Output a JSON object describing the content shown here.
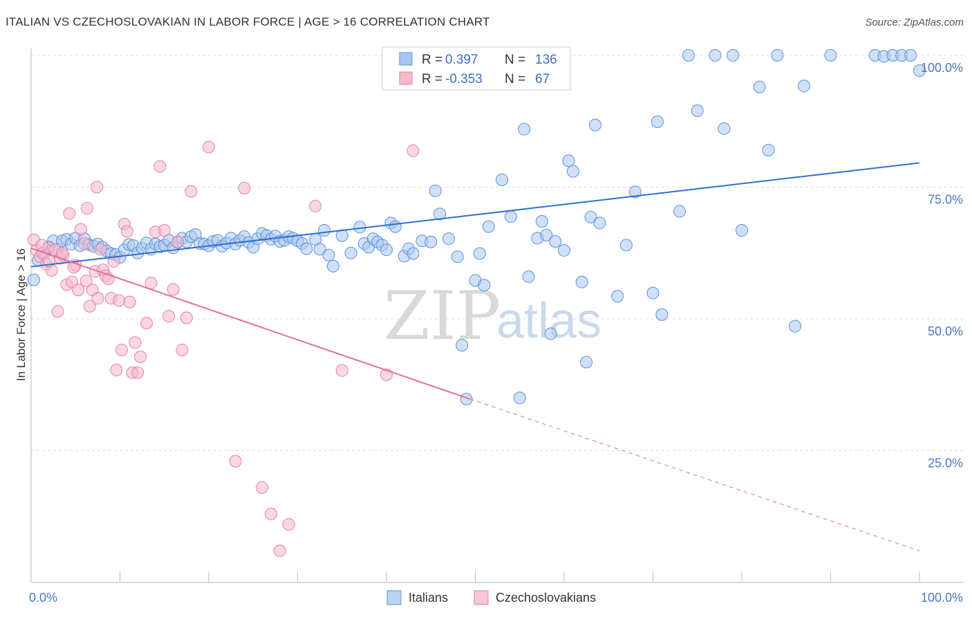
{
  "header": {
    "title": "ITALIAN VS CZECHOSLOVAKIAN IN LABOR FORCE | AGE > 16 CORRELATION CHART",
    "source": "Source: ZipAtlas.com"
  },
  "legend": {
    "rows": [
      {
        "r_label": "R =",
        "r_value": " 0.397",
        "n_label": "N =",
        "n_value": "136",
        "color": "#a9c8f0"
      },
      {
        "r_label": "R =",
        "r_value": "-0.353",
        "n_label": "N =",
        "n_value": " 67",
        "color": "#f5b8cc"
      }
    ]
  },
  "watermark": {
    "zip": "ZIP",
    "atlas": "atlas"
  },
  "chart_data": {
    "type": "scatter",
    "ylabel": "In Labor Force | Age > 16",
    "xlim": [
      0,
      100
    ],
    "ylim": [
      0,
      100
    ],
    "x_tick_labels": [
      "0.0%",
      "100.0%"
    ],
    "y_ticks": [
      {
        "value": 25,
        "label": "25.0%"
      },
      {
        "value": 50,
        "label": "50.0%"
      },
      {
        "value": 75,
        "label": "75.0%"
      },
      {
        "value": 100,
        "label": "100.0%"
      }
    ],
    "grid": true,
    "legend_position": "top-center",
    "series": [
      {
        "name": "Italians",
        "color": "#a9c8f0",
        "stroke": "#5b8fd8",
        "trend": {
          "x0": 0,
          "y0": 59.9,
          "x1": 100,
          "y1": 79.6,
          "color": "#2e6fce"
        },
        "points": [
          [
            0.3,
            57.4
          ],
          [
            0.8,
            61.1
          ],
          [
            1.5,
            62.5
          ],
          [
            2,
            63.7
          ],
          [
            2.5,
            64.8
          ],
          [
            3,
            63.2
          ],
          [
            3.5,
            64.8
          ],
          [
            4,
            65.1
          ],
          [
            4.5,
            64.2
          ],
          [
            5,
            65.3
          ],
          [
            5.5,
            63.9
          ],
          [
            6,
            65.2
          ],
          [
            6.5,
            64.1
          ],
          [
            7,
            63.8
          ],
          [
            7.5,
            64.2
          ],
          [
            8,
            63.6
          ],
          [
            8.5,
            62.9
          ],
          [
            9,
            62.4
          ],
          [
            9.5,
            62.2
          ],
          [
            10,
            61.7
          ],
          [
            10.5,
            63.1
          ],
          [
            11,
            64.1
          ],
          [
            11.5,
            63.9
          ],
          [
            12,
            62.5
          ],
          [
            12.5,
            63.4
          ],
          [
            13,
            64.4
          ],
          [
            13.5,
            63.2
          ],
          [
            14,
            64.2
          ],
          [
            14.5,
            63.7
          ],
          [
            15,
            64.0
          ],
          [
            15.5,
            64.9
          ],
          [
            16,
            63.5
          ],
          [
            16.5,
            64.5
          ],
          [
            17,
            65.3
          ],
          [
            17.5,
            64.6
          ],
          [
            18,
            65.6
          ],
          [
            18.5,
            66.0
          ],
          [
            19,
            64.3
          ],
          [
            19.5,
            64.2
          ],
          [
            20,
            63.9
          ],
          [
            20.5,
            64.7
          ],
          [
            21,
            64.9
          ],
          [
            21.5,
            63.8
          ],
          [
            22,
            64.4
          ],
          [
            22.5,
            65.3
          ],
          [
            23,
            64.2
          ],
          [
            23.5,
            64.9
          ],
          [
            24,
            65.6
          ],
          [
            24.5,
            64.5
          ],
          [
            25,
            63.6
          ],
          [
            25.5,
            65.2
          ],
          [
            26,
            66.2
          ],
          [
            26.5,
            65.8
          ],
          [
            27,
            65.1
          ],
          [
            27.5,
            65.7
          ],
          [
            28,
            64.7
          ],
          [
            28.5,
            64.9
          ],
          [
            29,
            65.6
          ],
          [
            29.5,
            65.3
          ],
          [
            30,
            64.8
          ],
          [
            30.5,
            64.3
          ],
          [
            31,
            63.3
          ],
          [
            32,
            65.1
          ],
          [
            32.5,
            63.2
          ],
          [
            33,
            66.8
          ],
          [
            33.5,
            62.1
          ],
          [
            34,
            60.0
          ],
          [
            35,
            65.8
          ],
          [
            36,
            62.5
          ],
          [
            37,
            67.4
          ],
          [
            37.5,
            64.3
          ],
          [
            38,
            63.6
          ],
          [
            38.5,
            65.2
          ],
          [
            39,
            64.6
          ],
          [
            39.5,
            64.0
          ],
          [
            40,
            63.1
          ],
          [
            40.5,
            68.2
          ],
          [
            41,
            67.5
          ],
          [
            42,
            61.9
          ],
          [
            42.5,
            63.3
          ],
          [
            43,
            62.4
          ],
          [
            44,
            64.8
          ],
          [
            45,
            64.6
          ],
          [
            45.5,
            74.3
          ],
          [
            46,
            69.9
          ],
          [
            47,
            65.2
          ],
          [
            48,
            61.8
          ],
          [
            48.5,
            45.0
          ],
          [
            49,
            34.8
          ],
          [
            50,
            57.3
          ],
          [
            50.5,
            62.4
          ],
          [
            51,
            56.4
          ],
          [
            51.5,
            67.5
          ],
          [
            53,
            76.4
          ],
          [
            54,
            69.4
          ],
          [
            55,
            35.0
          ],
          [
            55.5,
            86.0
          ],
          [
            56,
            58.0
          ],
          [
            57,
            65.3
          ],
          [
            57.5,
            68.5
          ],
          [
            58,
            65.9
          ],
          [
            58.5,
            47.2
          ],
          [
            59,
            64.7
          ],
          [
            60,
            63.0
          ],
          [
            60.5,
            80.0
          ],
          [
            61,
            78.0
          ],
          [
            62,
            57.0
          ],
          [
            62.5,
            41.8
          ],
          [
            63,
            69.3
          ],
          [
            63.5,
            86.8
          ],
          [
            64,
            68.2
          ],
          [
            66,
            54.3
          ],
          [
            67,
            64.0
          ],
          [
            68,
            74.1
          ],
          [
            70,
            54.9
          ],
          [
            70.5,
            87.4
          ],
          [
            71,
            50.8
          ],
          [
            73,
            70.4
          ],
          [
            74,
            100.0
          ],
          [
            75,
            89.5
          ],
          [
            77,
            100.0
          ],
          [
            78,
            86.1
          ],
          [
            79,
            100.0
          ],
          [
            80,
            66.8
          ],
          [
            82,
            94.0
          ],
          [
            83,
            82.0
          ],
          [
            84,
            100.0
          ],
          [
            86,
            48.6
          ],
          [
            87,
            94.2
          ],
          [
            90,
            100.0
          ],
          [
            95,
            100.0
          ],
          [
            96,
            99.8
          ],
          [
            97,
            100.0
          ],
          [
            98,
            100.0
          ],
          [
            99,
            100.0
          ],
          [
            100,
            97.1
          ]
        ]
      },
      {
        "name": "Czechoslovakians",
        "color": "#f5b8cc",
        "stroke": "#e680a2",
        "trend": {
          "x0": 0,
          "y0": 63.4,
          "x1": 49.4,
          "y1": 34.8,
          "color": "#e0709a"
        },
        "trend_dashed": {
          "x0": 49.4,
          "y0": 34.8,
          "x1": 100,
          "y1": 6.0
        },
        "points": [
          [
            0.3,
            65.0
          ],
          [
            0.6,
            63.0
          ],
          [
            1.0,
            61.8
          ],
          [
            1.3,
            62.5
          ],
          [
            1.7,
            60.4
          ],
          [
            2,
            63.5
          ],
          [
            2.3,
            59.2
          ],
          [
            2.7,
            63.1
          ],
          [
            3,
            51.4
          ],
          [
            3.3,
            61.5
          ],
          [
            3.6,
            62.1
          ],
          [
            4,
            56.5
          ],
          [
            4.3,
            70.0
          ],
          [
            4.6,
            57.0
          ],
          [
            5,
            60.2
          ],
          [
            5.3,
            55.5
          ],
          [
            5.6,
            67.0
          ],
          [
            6,
            64.3
          ],
          [
            6.3,
            71.0
          ],
          [
            6.6,
            52.4
          ],
          [
            6.9,
            55.5
          ],
          [
            7.2,
            59.0
          ],
          [
            7.5,
            53.9
          ],
          [
            7.8,
            63.2
          ],
          [
            8.1,
            59.3
          ],
          [
            8.4,
            58.2
          ],
          [
            8.7,
            57.6
          ],
          [
            9,
            53.9
          ],
          [
            9.3,
            60.9
          ],
          [
            9.6,
            40.3
          ],
          [
            9.9,
            53.5
          ],
          [
            10.2,
            44.1
          ],
          [
            10.5,
            68.0
          ],
          [
            10.8,
            66.6
          ],
          [
            11.1,
            53.2
          ],
          [
            11.4,
            39.8
          ],
          [
            11.7,
            45.5
          ],
          [
            12,
            39.8
          ],
          [
            12.3,
            42.8
          ],
          [
            13,
            49.2
          ],
          [
            13.5,
            56.8
          ],
          [
            14,
            66.5
          ],
          [
            14.5,
            78.9
          ],
          [
            15,
            66.8
          ],
          [
            15.5,
            50.5
          ],
          [
            16,
            55.6
          ],
          [
            16.5,
            64.6
          ],
          [
            17,
            44.1
          ],
          [
            17.5,
            50.2
          ],
          [
            18,
            74.2
          ],
          [
            20,
            82.6
          ],
          [
            23,
            23.0
          ],
          [
            24,
            74.8
          ],
          [
            26,
            18.0
          ],
          [
            27,
            13.0
          ],
          [
            28,
            6.0
          ],
          [
            29,
            11.0
          ],
          [
            32,
            71.4
          ],
          [
            35,
            40.2
          ],
          [
            40,
            39.4
          ],
          [
            43,
            81.9
          ],
          [
            1.2,
            64.0
          ],
          [
            2.0,
            61.0
          ],
          [
            3.5,
            62.5
          ],
          [
            4.8,
            59.8
          ],
          [
            6.2,
            57.2
          ],
          [
            7.4,
            75.0
          ]
        ]
      }
    ]
  },
  "bottom_legend": [
    {
      "label": "Italians",
      "color": "#a9c8f0",
      "stroke": "#5b8fd8"
    },
    {
      "label": "Czechoslovakians",
      "color": "#f5b8cc",
      "stroke": "#e680a2"
    }
  ]
}
